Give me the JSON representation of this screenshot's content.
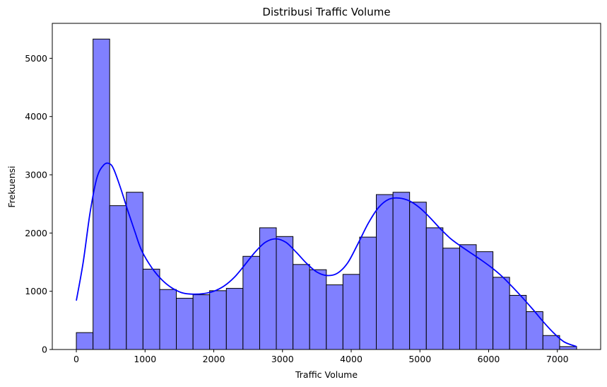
{
  "chart_data": {
    "type": "bar",
    "title": "Distribusi Traffic Volume",
    "xlabel": "Traffic Volume",
    "ylabel": "Frekuensi",
    "xlim": [
      -350,
      7630
    ],
    "ylim": [
      0,
      5600
    ],
    "grid": false,
    "legend": "none",
    "bar_color": "#8080ff",
    "edge_color": "#000000",
    "kde_color": "#0000ff",
    "x_ticks": [
      0,
      1000,
      2000,
      3000,
      4000,
      5000,
      6000,
      7000
    ],
    "y_ticks": [
      0,
      1000,
      2000,
      3000,
      4000,
      5000
    ],
    "bin_edges": [
      0,
      243,
      485,
      728,
      970,
      1213,
      1455,
      1698,
      1940,
      2183,
      2425,
      2668,
      2910,
      3153,
      3395,
      3638,
      3880,
      4123,
      4365,
      4608,
      4850,
      5093,
      5335,
      5578,
      5820,
      6063,
      6305,
      6548,
      6790,
      7033,
      7280
    ],
    "values": [
      290,
      5330,
      2470,
      2700,
      1380,
      1030,
      880,
      940,
      1010,
      1050,
      1600,
      2090,
      1940,
      1460,
      1370,
      1110,
      1290,
      1930,
      2660,
      2700,
      2530,
      2090,
      1740,
      1800,
      1680,
      1240,
      930,
      650,
      240,
      50
    ],
    "kde": {
      "x": [
        0,
        100,
        200,
        300,
        400,
        485,
        550,
        650,
        750,
        850,
        950,
        1100,
        1250,
        1400,
        1550,
        1700,
        1850,
        2000,
        2150,
        2300,
        2450,
        2600,
        2750,
        2900,
        3050,
        3200,
        3350,
        3500,
        3650,
        3800,
        3950,
        4100,
        4250,
        4400,
        4550,
        4700,
        4850,
        5000,
        5150,
        5300,
        5450,
        5600,
        5750,
        5900,
        6050,
        6200,
        6350,
        6500,
        6650,
        6800,
        6950,
        7100,
        7280
      ],
      "y": [
        840,
        1500,
        2350,
        2950,
        3170,
        3190,
        3080,
        2750,
        2380,
        2030,
        1700,
        1400,
        1190,
        1050,
        970,
        950,
        960,
        1000,
        1090,
        1240,
        1450,
        1670,
        1840,
        1900,
        1840,
        1670,
        1480,
        1330,
        1270,
        1310,
        1490,
        1820,
        2170,
        2440,
        2580,
        2600,
        2550,
        2430,
        2260,
        2070,
        1900,
        1770,
        1650,
        1530,
        1400,
        1250,
        1070,
        880,
        680,
        470,
        280,
        130,
        50
      ]
    }
  }
}
